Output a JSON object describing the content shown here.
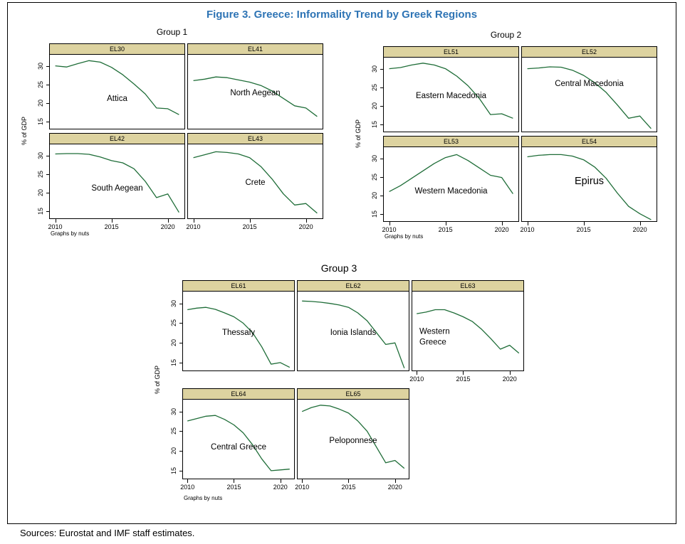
{
  "figure": {
    "graphs_note": "Graphs by nuts",
    "source_note": "Sources: Eurostat and IMF staff estimates.",
    "colors": {
      "line": "#1f6d38",
      "header_bg": "#ddd3a0",
      "title": "#2e74b5"
    }
  },
  "chart_data": {
    "type": "line",
    "title": "Figure 3. Greece: Informality Trend by Greek Regions",
    "xlabel": "",
    "ylabel": "% of GDP",
    "x": [
      2010,
      2011,
      2012,
      2013,
      2014,
      2015,
      2016,
      2017,
      2018,
      2019,
      2020,
      2021
    ],
    "xticks": [
      2010,
      2015,
      2020
    ],
    "yticks": [
      15,
      20,
      25,
      30
    ],
    "ylim": [
      13,
      33
    ],
    "grid": false,
    "legend": "none",
    "groups": [
      {
        "title": "Group 1",
        "panels": [
          {
            "code": "EL30",
            "region": "Attica",
            "show_y": true,
            "show_x": false,
            "values": [
              30.0,
              29.7,
              30.6,
              31.4,
              31.0,
              29.6,
              27.6,
              25.1,
              22.4,
              18.6,
              18.4,
              16.8
            ]
          },
          {
            "code": "EL41",
            "region": "North Aegean",
            "show_y": false,
            "show_x": false,
            "values": [
              26.0,
              26.4,
              27.0,
              26.8,
              26.2,
              25.6,
              24.7,
              23.2,
              21.2,
              19.2,
              18.6,
              16.3
            ]
          },
          {
            "code": "EL42",
            "region": "South Aegean",
            "show_y": true,
            "show_x": true,
            "values": [
              30.4,
              30.5,
              30.5,
              30.3,
              29.6,
              28.6,
              28.0,
              26.4,
              23.0,
              18.6,
              19.6,
              14.6
            ]
          },
          {
            "code": "EL43",
            "region": "Crete",
            "show_y": false,
            "show_x": true,
            "values": [
              29.4,
              30.2,
              31.0,
              30.8,
              30.4,
              29.4,
              27.0,
              23.6,
              19.6,
              16.6,
              17.0,
              14.4
            ]
          }
        ]
      },
      {
        "title": "Group 2",
        "panels": [
          {
            "code": "EL51",
            "region": "Eastern Macedonia",
            "show_y": true,
            "show_x": false,
            "values": [
              30.0,
              30.3,
              31.0,
              31.5,
              31.0,
              30.0,
              28.0,
              25.4,
              22.0,
              17.6,
              17.8,
              16.6
            ]
          },
          {
            "code": "EL52",
            "region": "Central Macedonia",
            "show_y": false,
            "show_x": false,
            "values": [
              30.0,
              30.2,
              30.5,
              30.4,
              29.6,
              28.2,
              26.2,
              23.6,
              20.2,
              16.6,
              17.2,
              13.8
            ]
          },
          {
            "code": "EL53",
            "region": "Western Macedonia",
            "show_y": true,
            "show_x": true,
            "values": [
              21.0,
              22.6,
              24.6,
              26.6,
              28.6,
              30.2,
              31.0,
              29.4,
              27.4,
              25.4,
              24.8,
              20.4
            ]
          },
          {
            "code": "EL54",
            "region": "Epirus",
            "show_y": false,
            "show_x": true,
            "values": [
              30.4,
              30.8,
              31.0,
              31.0,
              30.6,
              29.6,
              27.6,
              24.6,
              20.6,
              17.0,
              15.0,
              13.4
            ]
          }
        ]
      },
      {
        "title": "Group 3",
        "panels": [
          {
            "code": "EL61",
            "region": "Thessaly",
            "show_y": true,
            "show_x": false,
            "values": [
              28.4,
              28.8,
              29.0,
              28.5,
              27.6,
              26.6,
              25.0,
              22.6,
              19.0,
              14.6,
              15.0,
              13.8
            ]
          },
          {
            "code": "EL62",
            "region": "Ionia Islands",
            "show_y": false,
            "show_x": false,
            "values": [
              30.6,
              30.5,
              30.3,
              30.0,
              29.6,
              29.0,
              27.6,
              25.6,
              22.6,
              19.6,
              20.0,
              13.6
            ]
          },
          {
            "code": "EL63",
            "region": "Western Greece",
            "show_y": false,
            "show_x": true,
            "values": [
              27.4,
              27.8,
              28.4,
              28.4,
              27.6,
              26.6,
              25.4,
              23.4,
              21.0,
              18.4,
              19.4,
              17.4
            ]
          },
          {
            "code": "EL64",
            "region": "Central Greece",
            "show_y": true,
            "show_x": true,
            "values": [
              27.6,
              28.2,
              28.8,
              29.0,
              28.0,
              26.6,
              24.6,
              21.6,
              18.0,
              15.0,
              15.2,
              15.4
            ]
          },
          {
            "code": "EL65",
            "region": "Peloponnese",
            "show_y": false,
            "show_x": true,
            "values": [
              30.0,
              31.0,
              31.6,
              31.4,
              30.6,
              29.6,
              27.6,
              25.0,
              21.0,
              17.0,
              17.6,
              15.6
            ]
          }
        ]
      }
    ]
  }
}
